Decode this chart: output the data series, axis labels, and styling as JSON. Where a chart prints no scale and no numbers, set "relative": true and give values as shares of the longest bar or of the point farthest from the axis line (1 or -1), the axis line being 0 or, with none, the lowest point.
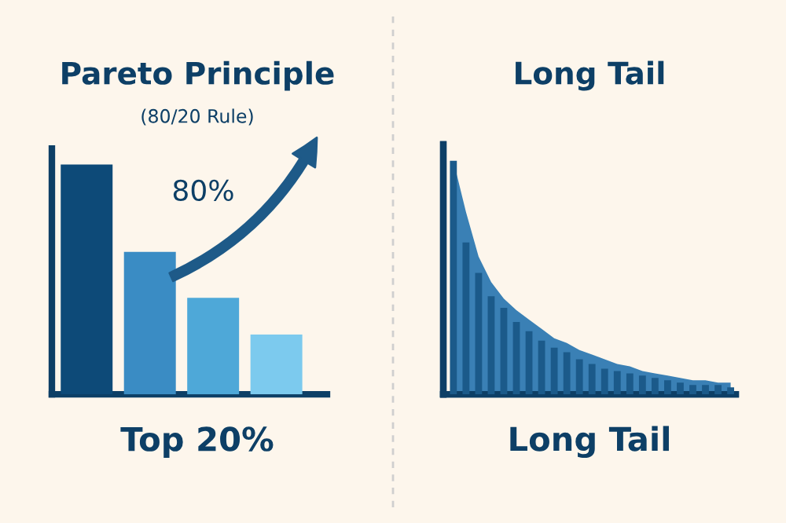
{
  "chart_data": [
    {
      "type": "bar",
      "title": "Pareto Principle",
      "subtitle": "(80/20 Rule)",
      "xlabel": "Top 20%",
      "relative": true,
      "annotations": [
        "80%"
      ],
      "categories": [
        null,
        null,
        null,
        null
      ],
      "series": [
        {
          "colors": [
            "#0d4a78",
            "#3a8cc4",
            "#4ea8d8",
            "#7ccaee"
          ],
          "values": [
            1,
            0.62,
            0.42,
            0.26
          ]
        }
      ]
    },
    {
      "type": "bar",
      "title": "Long Tail",
      "xlabel": "Long Tail",
      "relative": true,
      "categories": [
        null,
        null,
        null,
        null,
        null,
        null,
        null,
        null,
        null,
        null,
        null,
        null,
        null,
        null,
        null,
        null,
        null,
        null,
        null,
        null,
        null,
        null,
        null
      ],
      "series": [
        {
          "color": "#1b5a8a",
          "values": [
            1,
            0.65,
            0.52,
            0.42,
            0.37,
            0.31,
            0.27,
            0.23,
            0.2,
            0.18,
            0.15,
            0.13,
            0.11,
            0.1,
            0.09,
            0.08,
            0.07,
            0.06,
            0.05,
            0.04,
            0.04,
            0.04,
            0.03
          ]
        }
      ]
    },
    {
      "type": "area",
      "relative": true,
      "categories": [
        null,
        null,
        null,
        null,
        null,
        null,
        null,
        null,
        null,
        null,
        null,
        null,
        null,
        null,
        null,
        null,
        null,
        null,
        null,
        null,
        null,
        null,
        null
      ],
      "series": [
        {
          "color": "#3a80b5",
          "values": [
            1,
            0.78,
            0.59,
            0.48,
            0.41,
            0.36,
            0.32,
            0.28,
            0.24,
            0.22,
            0.19,
            0.17,
            0.15,
            0.13,
            0.12,
            0.1,
            0.09,
            0.08,
            0.07,
            0.06,
            0.06,
            0.05,
            0.05
          ]
        }
      ]
    }
  ]
}
